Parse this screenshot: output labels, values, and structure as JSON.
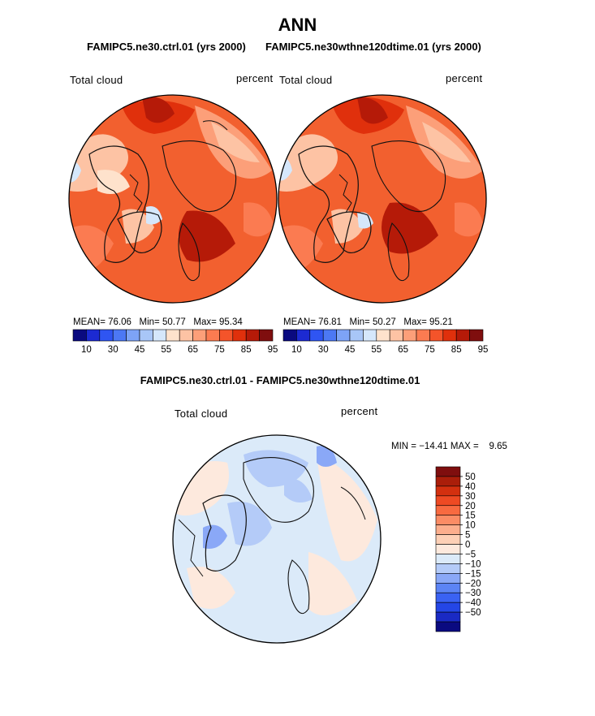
{
  "title": "ANN",
  "top_subtitle_left": "FAMIPC5.ne30.ctrl.01 (yrs 2000)",
  "top_subtitle_right": "FAMIPC5.ne30wthne120dtime.01 (yrs 2000)",
  "diff_subtitle": "FAMIPC5.ne30.ctrl.01 - FAMIPC5.ne30wthne120dtime.01",
  "colors": {
    "abs_scale": [
      "#0a0a80",
      "#1c2ad2",
      "#2f55f2",
      "#4c78f4",
      "#7da3f6",
      "#a8c6f7",
      "#d5e7fb",
      "#fee2cc",
      "#fdc3a4",
      "#fc9f79",
      "#fb7b51",
      "#f4542a",
      "#e0300c",
      "#b51a08",
      "#7f0e0e"
    ],
    "diff_scale": [
      "#0a0a80",
      "#1a2ac4",
      "#2446e6",
      "#3a62f3",
      "#5c84f5",
      "#8aa8f7",
      "#b4cbf8",
      "#dbeaf9",
      "#fde9dd",
      "#fdd0b6",
      "#fcae8d",
      "#fb8c65",
      "#f86a40",
      "#ee4a23",
      "#d3300f",
      "#aa1e0a",
      "#7f0e0e"
    ]
  },
  "chart_data": [
    {
      "type": "heatmap",
      "projection": "north-polar-stereographic",
      "case": "FAMIPC5.ne30.ctrl.01 (yrs 2000)",
      "variable_label": "Total cloud",
      "units_label": "percent",
      "stats": {
        "mean_label": "MEAN=",
        "mean": "76.06",
        "min_label": "Min=",
        "min": "50.77",
        "max_label": "Max=",
        "max": "95.34"
      },
      "colorbar_labels": [
        "10",
        "30",
        "45",
        "55",
        "65",
        "75",
        "85",
        "95"
      ],
      "mean_value": 76.06
    },
    {
      "type": "heatmap",
      "projection": "north-polar-stereographic",
      "case": "FAMIPC5.ne30wthne120dtime.01 (yrs 2000)",
      "variable_label": "Total cloud",
      "units_label": "percent",
      "stats": {
        "mean_label": "MEAN=",
        "mean": "76.81",
        "min_label": "Min=",
        "min": "50.27",
        "max_label": "Max=",
        "max": "95.21"
      },
      "colorbar_labels": [
        "10",
        "30",
        "45",
        "55",
        "65",
        "75",
        "85",
        "95"
      ],
      "mean_value": 76.81
    },
    {
      "type": "heatmap",
      "projection": "north-polar-stereographic",
      "case": "FAMIPC5.ne30.ctrl.01 - FAMIPC5.ne30wthne120dtime.01",
      "variable_label": "Total cloud",
      "units_label": "percent",
      "stats": {
        "min_label": "MIN =",
        "min": "−14.41",
        "max_label": "MAX =",
        "max": "9.65"
      },
      "colorbar_labels": [
        "50",
        "40",
        "30",
        "20",
        "15",
        "10",
        "5",
        "0",
        "−5",
        "−10",
        "−15",
        "−20",
        "−30",
        "−40",
        "−50"
      ]
    }
  ]
}
